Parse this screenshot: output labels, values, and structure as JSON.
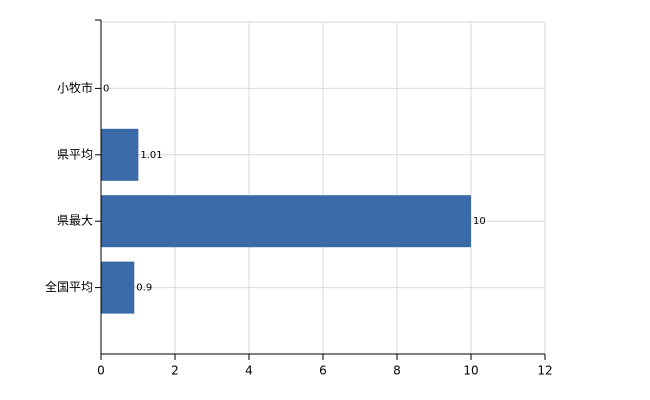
{
  "chart_data": {
    "type": "bar",
    "orientation": "horizontal",
    "categories": [
      "小牧市",
      "県平均",
      "県最大",
      "全国平均"
    ],
    "values": [
      0,
      1.01,
      10,
      0.9
    ],
    "color": "#3a6ba8",
    "xlim": [
      0,
      12
    ],
    "xticks": [
      0,
      2,
      4,
      6,
      8,
      10,
      12
    ],
    "grid": true
  }
}
